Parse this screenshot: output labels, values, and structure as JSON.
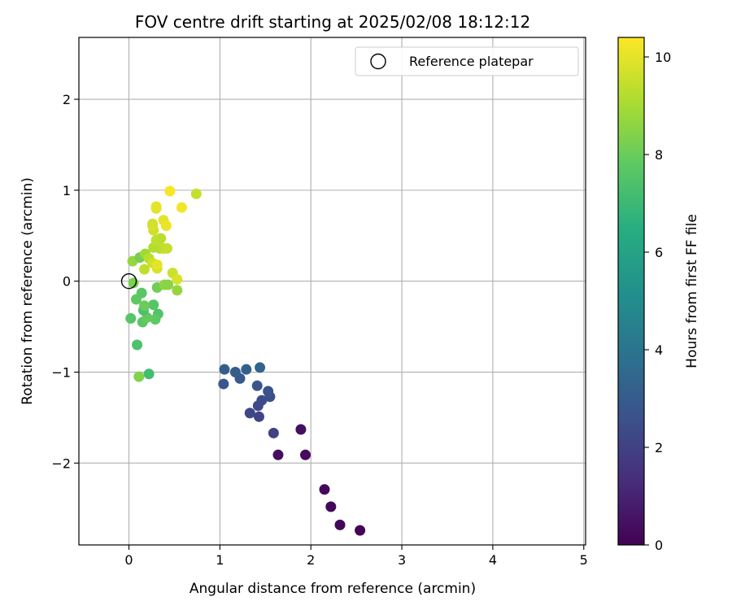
{
  "chart_data": {
    "type": "scatter",
    "title": "FOV centre drift starting at 2025/02/08 18:12:12",
    "xlabel": "Angular distance from reference (arcmin)",
    "ylabel": "Rotation from reference (arcmin)",
    "xlim": [
      -0.55,
      5.02
    ],
    "ylim": [
      -2.9,
      2.68
    ],
    "xticks": [
      0,
      1,
      2,
      3,
      4,
      5
    ],
    "xtick_labels": [
      "0",
      "1",
      "2",
      "3",
      "4",
      "5"
    ],
    "yticks": [
      -2,
      -1,
      0,
      1,
      2
    ],
    "ytick_labels": [
      "−2",
      "−1",
      "0",
      "1",
      "2"
    ],
    "grid": true,
    "legend": {
      "position": "top-right",
      "entries": [
        {
          "label": "Reference platepar",
          "marker": "open-circle"
        }
      ]
    },
    "reference_point": {
      "x": 0,
      "y": 0
    },
    "colorbar": {
      "label": "Hours from first FF file",
      "range": [
        0,
        10.4
      ],
      "ticks": [
        0,
        2,
        4,
        6,
        8,
        10
      ],
      "tick_labels": [
        "0",
        "2",
        "4",
        "6",
        "8",
        "10"
      ],
      "colormap": "viridis"
    },
    "points": [
      {
        "x": 2.54,
        "y": -2.74,
        "t": 0.1
      },
      {
        "x": 2.32,
        "y": -2.68,
        "t": 0.15
      },
      {
        "x": 2.22,
        "y": -2.48,
        "t": 0.2
      },
      {
        "x": 2.15,
        "y": -2.29,
        "t": 0.25
      },
      {
        "x": 1.94,
        "y": -1.91,
        "t": 0.3
      },
      {
        "x": 1.64,
        "y": -1.91,
        "t": 0.35
      },
      {
        "x": 1.89,
        "y": -1.63,
        "t": 0.4
      },
      {
        "x": 1.59,
        "y": -1.67,
        "t": 2.0
      },
      {
        "x": 1.43,
        "y": -1.49,
        "t": 2.1
      },
      {
        "x": 1.33,
        "y": -1.45,
        "t": 2.2
      },
      {
        "x": 1.42,
        "y": -1.37,
        "t": 2.3
      },
      {
        "x": 1.46,
        "y": -1.31,
        "t": 2.4
      },
      {
        "x": 1.55,
        "y": -1.27,
        "t": 2.5
      },
      {
        "x": 1.53,
        "y": -1.21,
        "t": 2.6
      },
      {
        "x": 1.41,
        "y": -1.15,
        "t": 2.7
      },
      {
        "x": 1.04,
        "y": -1.13,
        "t": 2.8
      },
      {
        "x": 1.22,
        "y": -1.07,
        "t": 2.9
      },
      {
        "x": 1.17,
        "y": -1.0,
        "t": 3.0
      },
      {
        "x": 1.05,
        "y": -0.97,
        "t": 3.1
      },
      {
        "x": 1.29,
        "y": -0.97,
        "t": 3.2
      },
      {
        "x": 1.44,
        "y": -0.95,
        "t": 3.3
      },
      {
        "x": 0.22,
        "y": -1.02,
        "t": 7.2
      },
      {
        "x": 0.09,
        "y": -0.7,
        "t": 7.4
      },
      {
        "x": 0.32,
        "y": -0.36,
        "t": 7.5
      },
      {
        "x": 0.02,
        "y": -0.41,
        "t": 7.6
      },
      {
        "x": 0.15,
        "y": -0.45,
        "t": 7.7
      },
      {
        "x": 0.29,
        "y": -0.42,
        "t": 7.8
      },
      {
        "x": 0.2,
        "y": -0.4,
        "t": 7.9
      },
      {
        "x": 0.16,
        "y": -0.32,
        "t": 7.4
      },
      {
        "x": 0.27,
        "y": -0.26,
        "t": 7.6
      },
      {
        "x": 0.08,
        "y": -0.2,
        "t": 7.8
      },
      {
        "x": 0.14,
        "y": -0.13,
        "t": 7.7
      },
      {
        "x": 0.17,
        "y": -0.27,
        "t": 8.0
      },
      {
        "x": 0.31,
        "y": -0.07,
        "t": 8.1
      },
      {
        "x": 0.05,
        "y": -0.02,
        "t": 8.3
      },
      {
        "x": 0.11,
        "y": -1.05,
        "t": 8.4
      },
      {
        "x": 0.39,
        "y": -0.04,
        "t": 8.6
      },
      {
        "x": 0.43,
        "y": -0.04,
        "t": 8.5
      },
      {
        "x": 0.53,
        "y": -0.1,
        "t": 8.7
      },
      {
        "x": 0.04,
        "y": 0.22,
        "t": 8.7
      },
      {
        "x": 0.12,
        "y": 0.26,
        "t": 8.2
      },
      {
        "x": 0.18,
        "y": 0.3,
        "t": 8.9
      },
      {
        "x": 0.22,
        "y": 0.25,
        "t": 9.3
      },
      {
        "x": 0.17,
        "y": 0.13,
        "t": 9.4
      },
      {
        "x": 0.26,
        "y": 0.2,
        "t": 9.6
      },
      {
        "x": 0.31,
        "y": 0.14,
        "t": 9.8
      },
      {
        "x": 0.31,
        "y": 0.18,
        "t": 10.0
      },
      {
        "x": 0.48,
        "y": 0.09,
        "t": 9.6
      },
      {
        "x": 0.53,
        "y": 0.02,
        "t": 9.8
      },
      {
        "x": 0.34,
        "y": 0.36,
        "t": 9.3
      },
      {
        "x": 0.38,
        "y": 0.36,
        "t": 9.4
      },
      {
        "x": 0.42,
        "y": 0.36,
        "t": 9.5
      },
      {
        "x": 0.27,
        "y": 0.37,
        "t": 9.2
      },
      {
        "x": 0.3,
        "y": 0.45,
        "t": 9.4
      },
      {
        "x": 0.35,
        "y": 0.47,
        "t": 9.3
      },
      {
        "x": 0.27,
        "y": 0.56,
        "t": 9.6
      },
      {
        "x": 0.26,
        "y": 0.61,
        "t": 9.8
      },
      {
        "x": 0.26,
        "y": 0.63,
        "t": 9.7
      },
      {
        "x": 0.38,
        "y": 0.67,
        "t": 10.0
      },
      {
        "x": 0.41,
        "y": 0.61,
        "t": 10.1
      },
      {
        "x": 0.3,
        "y": 0.8,
        "t": 9.9
      },
      {
        "x": 0.3,
        "y": 0.82,
        "t": 10.0
      },
      {
        "x": 0.58,
        "y": 0.81,
        "t": 10.2
      },
      {
        "x": 0.45,
        "y": 0.99,
        "t": 10.3
      },
      {
        "x": 0.74,
        "y": 0.96,
        "t": 9.5
      }
    ]
  }
}
